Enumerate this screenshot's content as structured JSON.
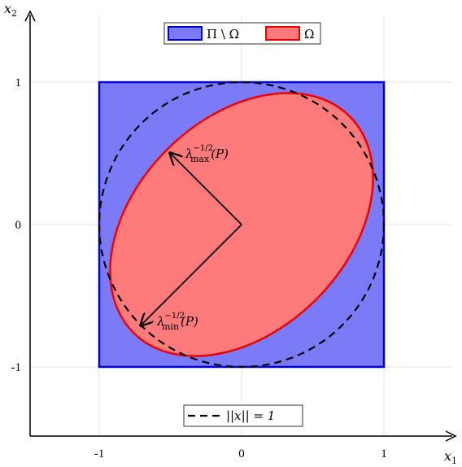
{
  "axes": {
    "x_label": "x",
    "x_label_sub": "1",
    "y_label": "x",
    "y_label_sub": "2",
    "x_ticks": [
      "-1",
      "0",
      "1"
    ],
    "y_ticks": [
      "1",
      "0",
      "-1"
    ],
    "range": [
      -1.5,
      1.5
    ]
  },
  "legend_top": {
    "items": [
      {
        "label": "Π \\ Ω",
        "fill": "#7b7bf7",
        "stroke": "#0000cc"
      },
      {
        "label": "Ω",
        "fill": "#ff7b7b",
        "stroke": "#ee0000"
      }
    ]
  },
  "legend_bottom": {
    "label": "||x|| = 1"
  },
  "annotations": {
    "lambda_max": {
      "base": "λ",
      "sup": "−1/2",
      "sub": "max",
      "arg": "(P)"
    },
    "lambda_min": {
      "base": "λ",
      "sup": "−1/2",
      "sub": "min",
      "arg": "(P)"
    }
  },
  "colors": {
    "square_fill": "#7b7bf7",
    "square_stroke": "#0000cc",
    "ellipse_fill": "#ff7b7b",
    "ellipse_stroke": "#ee0000",
    "circle_stroke": "#000000",
    "grid": "#e2e2e2"
  }
}
